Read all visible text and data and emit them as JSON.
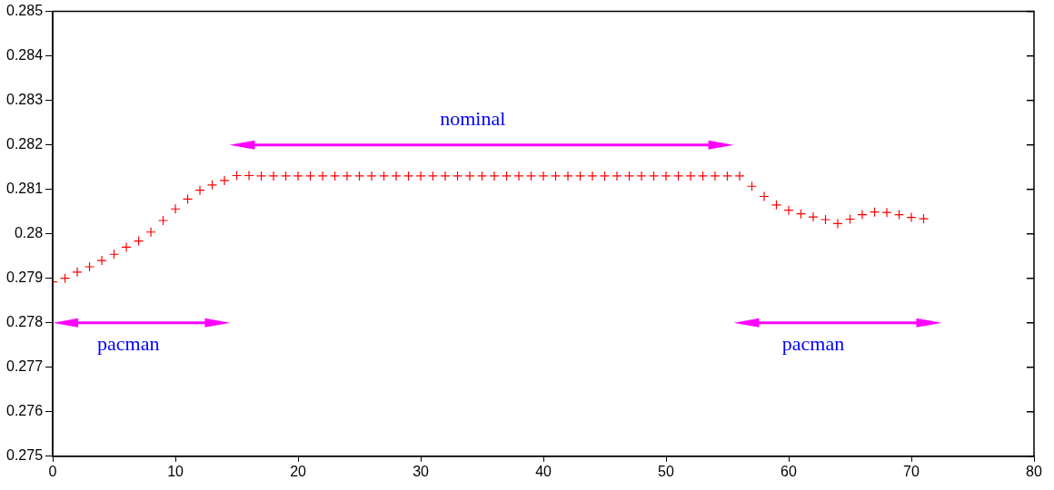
{
  "chart_data": {
    "type": "scatter",
    "marker": "cross",
    "grid": false,
    "legend": false,
    "x": [
      0,
      1,
      2,
      3,
      4,
      5,
      6,
      7,
      8,
      9,
      10,
      11,
      12,
      13,
      14,
      15,
      16,
      17,
      18,
      19,
      20,
      21,
      22,
      23,
      24,
      25,
      26,
      27,
      28,
      29,
      30,
      31,
      32,
      33,
      34,
      35,
      36,
      37,
      38,
      39,
      40,
      41,
      42,
      43,
      44,
      45,
      46,
      47,
      48,
      49,
      50,
      51,
      52,
      53,
      54,
      55,
      56,
      57,
      58,
      59,
      60,
      61,
      62,
      63,
      64,
      65,
      66,
      67,
      68,
      69,
      70,
      71
    ],
    "series": [
      {
        "color": "#ff0000",
        "values": [
          0.27892,
          0.279,
          0.27914,
          0.27926,
          0.2794,
          0.27954,
          0.2797,
          0.27984,
          0.28004,
          0.2803,
          0.28056,
          0.28078,
          0.28098,
          0.2811,
          0.2812,
          0.28131,
          0.28131,
          0.2813,
          0.2813,
          0.2813,
          0.2813,
          0.2813,
          0.2813,
          0.2813,
          0.2813,
          0.2813,
          0.2813,
          0.2813,
          0.2813,
          0.2813,
          0.2813,
          0.2813,
          0.2813,
          0.2813,
          0.2813,
          0.2813,
          0.2813,
          0.2813,
          0.2813,
          0.2813,
          0.2813,
          0.2813,
          0.2813,
          0.2813,
          0.2813,
          0.2813,
          0.2813,
          0.2813,
          0.2813,
          0.2813,
          0.2813,
          0.2813,
          0.2813,
          0.2813,
          0.2813,
          0.2813,
          0.2813,
          0.28107,
          0.28084,
          0.28065,
          0.28053,
          0.28045,
          0.28038,
          0.28032,
          0.28023,
          0.28033,
          0.28043,
          0.28049,
          0.28048,
          0.28043,
          0.28037,
          0.28034
        ]
      }
    ],
    "xlim": [
      0,
      80
    ],
    "xticks": [
      0,
      10,
      20,
      30,
      40,
      50,
      60,
      70,
      80
    ],
    "ylim": [
      0.275,
      0.285
    ],
    "yticks": [
      0.275,
      0.276,
      0.277,
      0.278,
      0.279,
      0.28,
      0.281,
      0.282,
      0.283,
      0.284,
      0.285
    ],
    "annotations": [
      "nominal",
      "pacman",
      "pacman"
    ]
  }
}
